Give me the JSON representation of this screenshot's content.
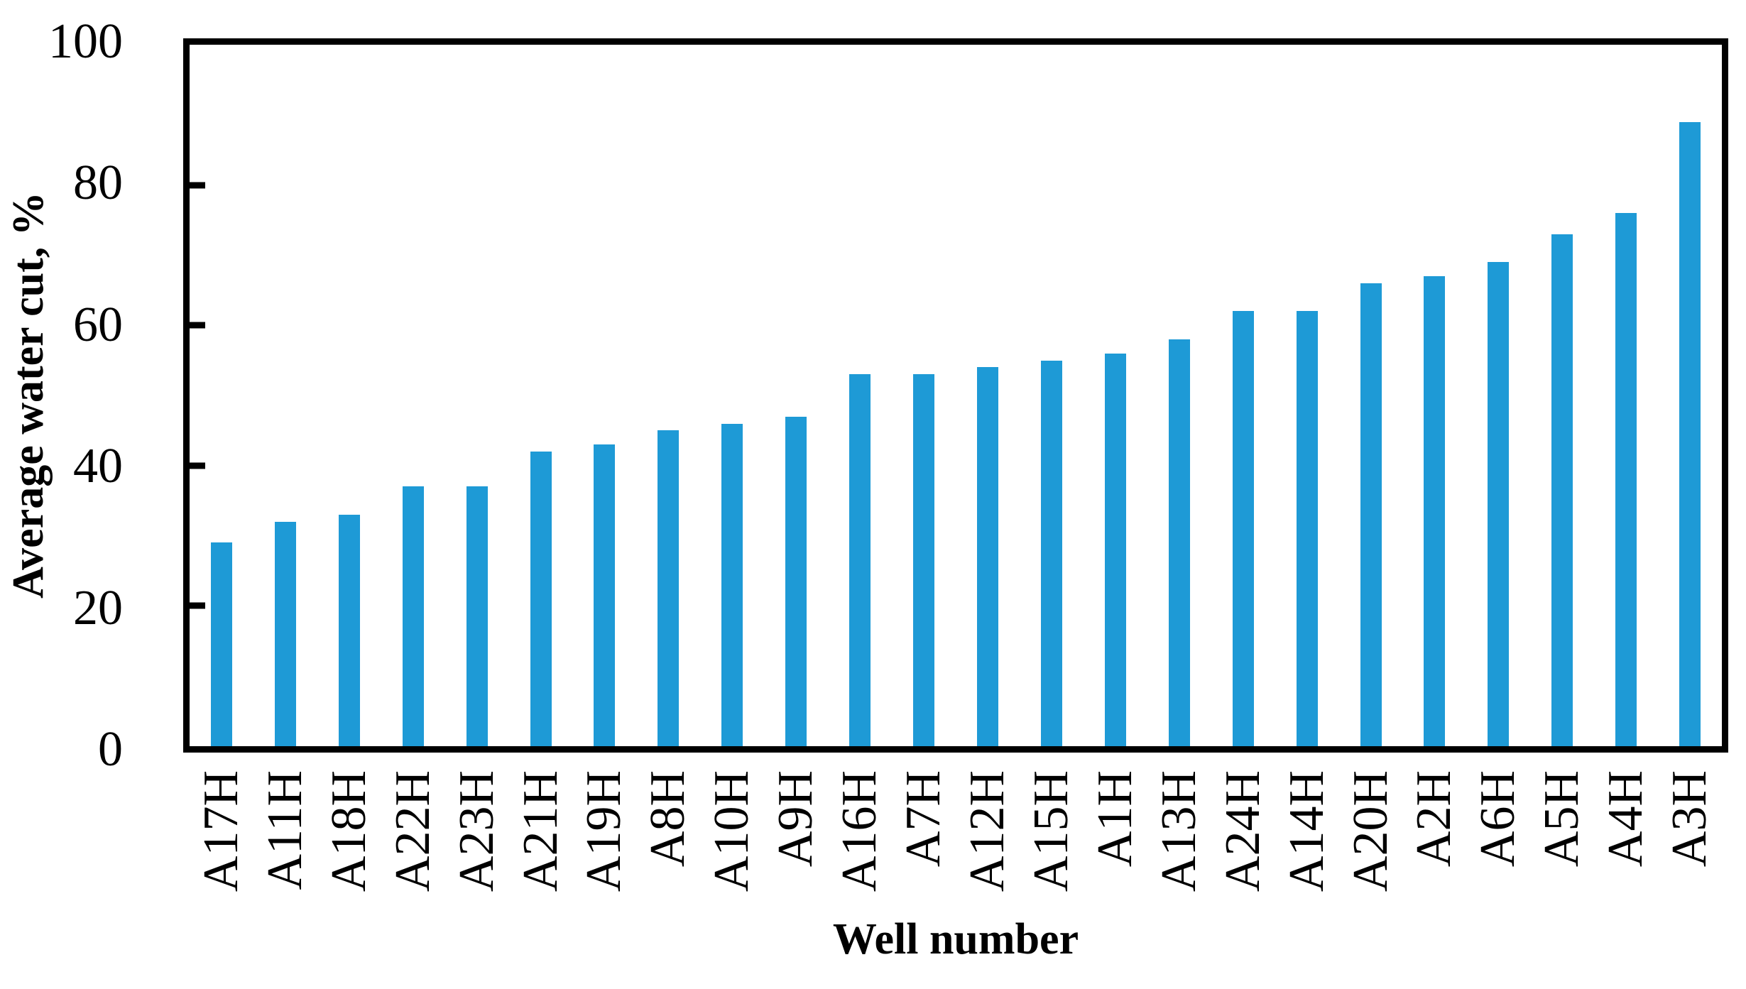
{
  "chart_data": {
    "type": "bar",
    "title": "",
    "xlabel": "Well number",
    "ylabel": "Average water cut, %",
    "categories": [
      "A17H",
      "A11H",
      "A18H",
      "A22H",
      "A23H",
      "A21H",
      "A19H",
      "A8H",
      "A10H",
      "A9H",
      "A16H",
      "A7H",
      "A12H",
      "A15H",
      "A1H",
      "A13H",
      "A24H",
      "A14H",
      "A20H",
      "A2H",
      "A6H",
      "A5H",
      "A4H",
      "A3H"
    ],
    "values": [
      29,
      32,
      33,
      37,
      37,
      42,
      43,
      45,
      46,
      47,
      53,
      53,
      54,
      55,
      56,
      58,
      62,
      62,
      66,
      67,
      69,
      73,
      76,
      89
    ],
    "ylim": [
      0,
      100
    ],
    "yticks": [
      0,
      20,
      40,
      60,
      80,
      100
    ],
    "grid": false,
    "legend": "none",
    "frame": "full-box",
    "tick_direction": "in",
    "bar_color": "#1E9AD6",
    "axis_color": "#000000",
    "background_color": "#FFFFFF"
  }
}
